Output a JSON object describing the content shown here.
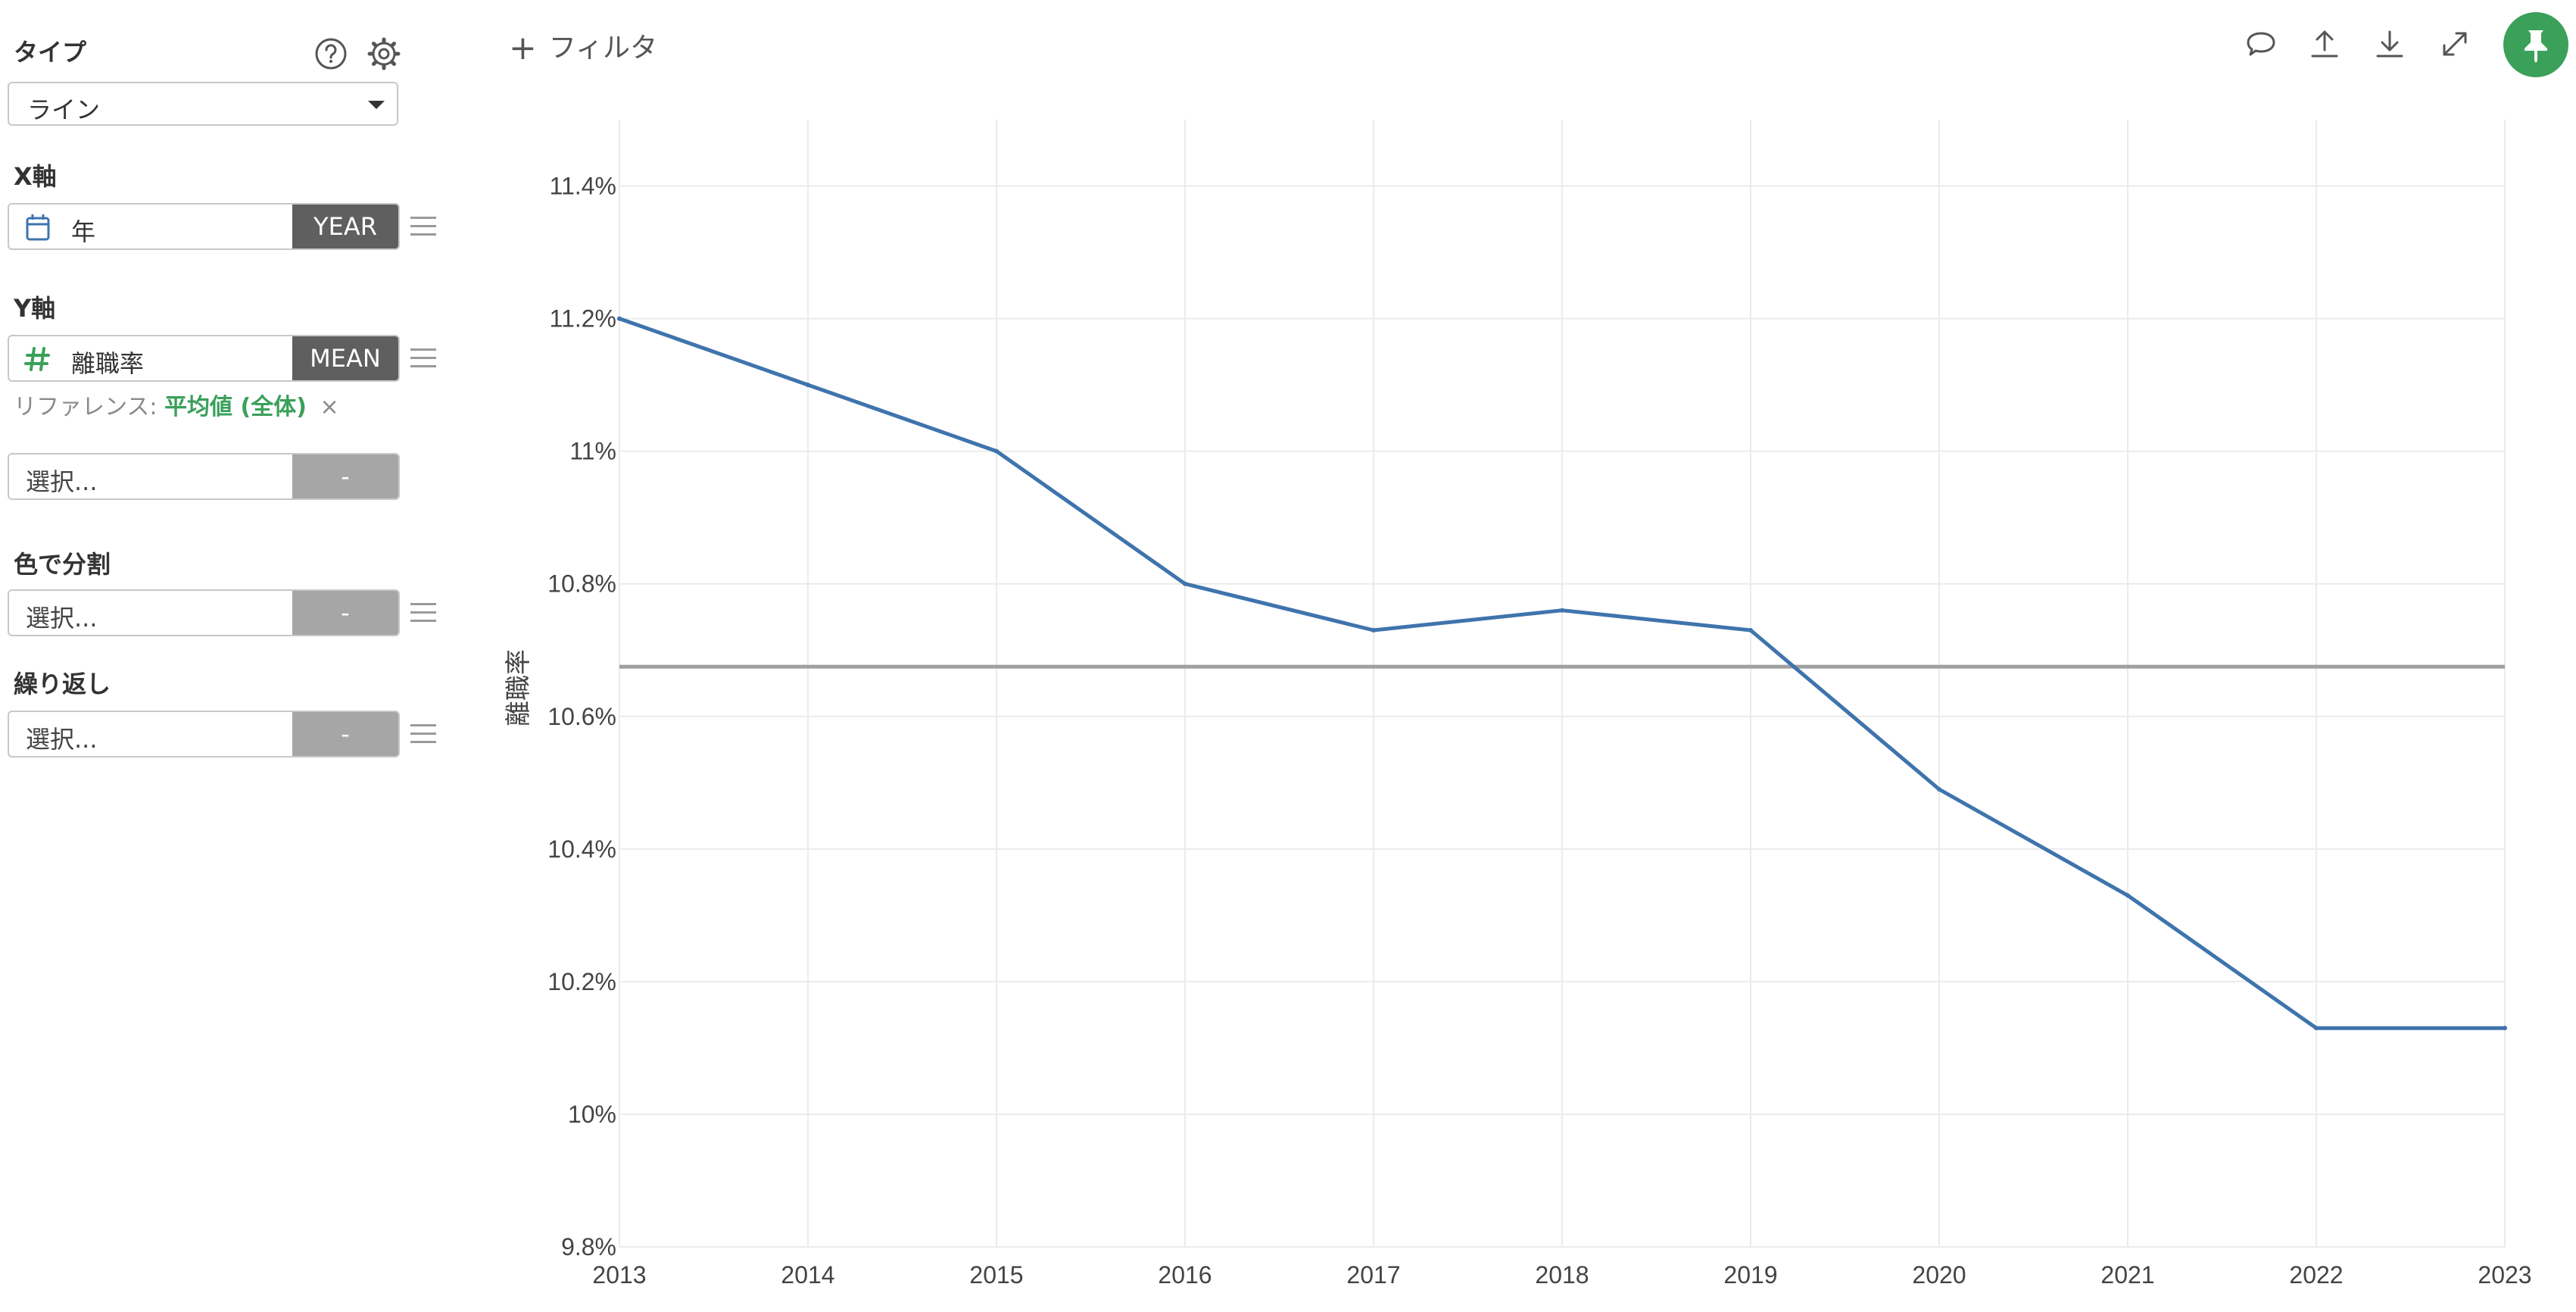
{
  "panel": {
    "type_label": "タイプ",
    "type_value": "ライン",
    "x_axis": {
      "label": "X軸",
      "field": "年",
      "agg": "YEAR"
    },
    "y_axis": {
      "label": "Y軸",
      "field": "離職率",
      "agg": "MEAN"
    },
    "reference": {
      "prefix": "リファレンス:",
      "value": "平均値 (全体)",
      "remove": "×"
    },
    "extra_select": {
      "placeholder": "選択...",
      "agg": "-"
    },
    "color_split": {
      "label": "色で分割",
      "placeholder": "選択...",
      "agg": "-"
    },
    "repeat": {
      "label": "繰り返し",
      "placeholder": "選択...",
      "agg": "-"
    },
    "icons": {
      "help": "help-icon",
      "settings": "gear-icon"
    }
  },
  "toolbar": {
    "filter_label": "フィルタ",
    "icons": [
      "comment-icon",
      "upload-icon",
      "download-icon",
      "expand-icon",
      "pin-icon"
    ]
  },
  "colors": {
    "line": "#3f74ad",
    "reference_line": "#a0a0a0",
    "accent": "#3aa05a",
    "agg_dark": "#5f5f5f",
    "agg_empty": "#a6a6a6"
  },
  "chart_data": {
    "type": "line",
    "title": "",
    "xlabel": "",
    "ylabel": "離職率",
    "x": [
      2013,
      2014,
      2015,
      2016,
      2017,
      2018,
      2019,
      2020,
      2021,
      2022,
      2023
    ],
    "series": [
      {
        "values": [
          11.2,
          11.1,
          11.0,
          10.8,
          10.73,
          10.76,
          10.73,
          10.49,
          10.33,
          10.13,
          10.13
        ]
      }
    ],
    "reference_line": {
      "value": 10.675
    },
    "ylim": [
      9.8,
      11.5
    ],
    "y_ticks": [
      9.8,
      10.0,
      10.2,
      10.4,
      10.6,
      10.8,
      11.0,
      11.2,
      11.4
    ],
    "y_tick_labels": [
      "9.8%",
      "10%",
      "10.2%",
      "10.4%",
      "10.6%",
      "10.8%",
      "11%",
      "11.2%",
      "11.4%"
    ],
    "x_tick_labels": [
      "2013",
      "2014",
      "2015",
      "2016",
      "2017",
      "2018",
      "2019",
      "2020",
      "2021",
      "2022",
      "2023"
    ],
    "grid": true,
    "legend": "none"
  }
}
